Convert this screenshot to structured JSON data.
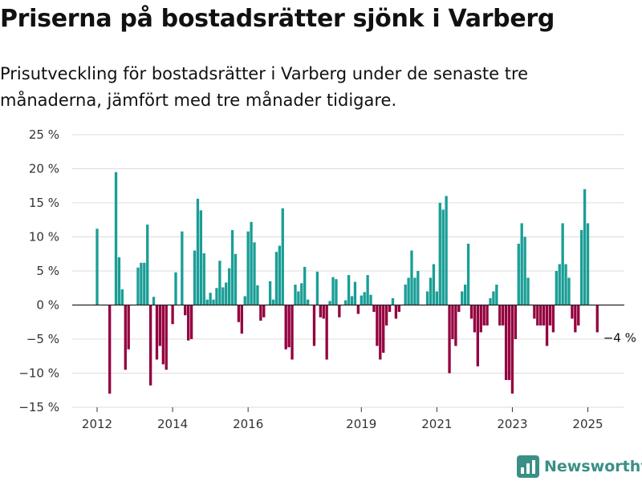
{
  "header": {
    "title": "Priserna på bostadsrätter sjönk i Varberg",
    "subtitle": "Prisutveckling för bostadsrätter i Varberg under de senaste tre månaderna, jämfört med tre månader tidigare."
  },
  "branding": {
    "name": "Newsworthy",
    "icon": "chart-logo-icon"
  },
  "chart_data": {
    "type": "bar",
    "title": "Priserna på bostadsrätter sjönk i Varberg",
    "subtitle": "Prisutveckling för bostadsrätter i Varberg under de senaste tre månaderna, jämfört med tre månader tidigare.",
    "xlabel": "",
    "ylabel": "",
    "ylim": [
      -15,
      25
    ],
    "y_ticks": [
      -15,
      -10,
      -5,
      0,
      5,
      10,
      15,
      20,
      25
    ],
    "y_tick_labels": [
      "−15 %",
      "−10 %",
      "−5 %",
      "0 %",
      "5 %",
      "10 %",
      "15 %",
      "20 %",
      "25 %"
    ],
    "x_tick_labels": [
      "2012",
      "2014",
      "2016",
      "2019",
      "2021",
      "2023",
      "2025"
    ],
    "x_tick_dates": [
      "2012-01",
      "2014-01",
      "2016-01",
      "2019-01",
      "2021-01",
      "2023-01",
      "2025-01"
    ],
    "grid": true,
    "legend": "none",
    "colors": {
      "positive": "#1a9e96",
      "negative": "#94003f"
    },
    "annotation": {
      "text": "−4 %",
      "date": "2025-04",
      "value": -4
    },
    "x": [
      "2012-01",
      "2012-05",
      "2012-07",
      "2012-08",
      "2012-09",
      "2012-10",
      "2012-11",
      "2013-02",
      "2013-03",
      "2013-04",
      "2013-05",
      "2013-06",
      "2013-07",
      "2013-08",
      "2013-09",
      "2013-10",
      "2013-11",
      "2013-12",
      "2014-01",
      "2014-02",
      "2014-03",
      "2014-04",
      "2014-05",
      "2014-06",
      "2014-07",
      "2014-08",
      "2014-09",
      "2014-10",
      "2014-11",
      "2014-12",
      "2015-01",
      "2015-02",
      "2015-03",
      "2015-04",
      "2015-05",
      "2015-06",
      "2015-07",
      "2015-08",
      "2015-09",
      "2015-10",
      "2015-11",
      "2015-12",
      "2016-01",
      "2016-02",
      "2016-03",
      "2016-04",
      "2016-05",
      "2016-06",
      "2016-07",
      "2016-08",
      "2016-09",
      "2016-10",
      "2016-11",
      "2016-12",
      "2017-01",
      "2017-02",
      "2017-03",
      "2017-04",
      "2017-05",
      "2017-06",
      "2017-07",
      "2017-08",
      "2017-09",
      "2017-10",
      "2017-11",
      "2017-12",
      "2018-01",
      "2018-02",
      "2018-03",
      "2018-04",
      "2018-05",
      "2018-06",
      "2018-07",
      "2018-08",
      "2018-09",
      "2018-10",
      "2018-11",
      "2018-12",
      "2019-01",
      "2019-02",
      "2019-03",
      "2019-04",
      "2019-05",
      "2019-06",
      "2019-07",
      "2019-08",
      "2019-09",
      "2019-10",
      "2019-11",
      "2019-12",
      "2020-01",
      "2020-02",
      "2020-03",
      "2020-04",
      "2020-05",
      "2020-06",
      "2020-07",
      "2020-08",
      "2020-09",
      "2020-10",
      "2020-11",
      "2020-12",
      "2021-01",
      "2021-02",
      "2021-03",
      "2021-04",
      "2021-05",
      "2021-06",
      "2021-07",
      "2021-08",
      "2021-09",
      "2021-10",
      "2021-11",
      "2021-12",
      "2022-01",
      "2022-02",
      "2022-03",
      "2022-04",
      "2022-05",
      "2022-06",
      "2022-07",
      "2022-08",
      "2022-09",
      "2022-10",
      "2022-11",
      "2022-12",
      "2023-01",
      "2023-02",
      "2023-03",
      "2023-04",
      "2023-05",
      "2023-06",
      "2023-07",
      "2023-08",
      "2023-09",
      "2023-10",
      "2023-11",
      "2023-12",
      "2024-01",
      "2024-02",
      "2024-03",
      "2024-04",
      "2024-05",
      "2024-06",
      "2024-07",
      "2024-08",
      "2024-09",
      "2024-10",
      "2024-11",
      "2024-12",
      "2025-01",
      "2025-02",
      "2025-03",
      "2025-04"
    ],
    "values": [
      11.2,
      -13,
      19.5,
      7,
      2.3,
      -9.5,
      -6.5,
      5.5,
      6.2,
      6.2,
      11.8,
      -11.8,
      1.2,
      -8,
      -6,
      -8.7,
      -9.5,
      0,
      -2.8,
      4.8,
      0,
      10.8,
      -1.5,
      -5.2,
      -5,
      8,
      15.6,
      13.9,
      7.6,
      0.8,
      1.8,
      0.8,
      2.5,
      6.5,
      2.6,
      3.3,
      5.4,
      11,
      7.5,
      -2.5,
      -4.2,
      1.3,
      10.8,
      12.2,
      9.2,
      2.9,
      -2.3,
      -1.8,
      0,
      3.5,
      0.8,
      7.8,
      8.7,
      14.2,
      -6.5,
      -6.2,
      -8,
      3,
      2,
      3.2,
      5.6,
      0.8,
      0,
      -6,
      4.9,
      -1.8,
      -2,
      -8,
      0.6,
      4.1,
      3.8,
      -1.8,
      0,
      0.7,
      4.4,
      1.3,
      3.4,
      -1.3,
      1.4,
      1.9,
      4.4,
      1.5,
      -1,
      -6,
      -8,
      -7,
      -3,
      -1,
      1,
      -2,
      -1,
      0,
      3,
      4,
      8,
      4,
      5,
      0,
      0,
      2,
      4,
      6,
      2,
      15,
      14,
      16,
      -10,
      -5,
      -6,
      -1,
      2,
      3,
      9,
      -2,
      -4,
      -9,
      -4,
      -3,
      -3,
      1,
      2,
      3,
      -3,
      -3,
      -11,
      -11,
      -13,
      -5,
      9,
      12,
      10,
      4,
      0,
      -2,
      -3,
      -3,
      -3,
      -6,
      -3,
      -4,
      5,
      6,
      12,
      6,
      4,
      -2,
      -4,
      -3,
      11,
      17,
      12,
      0,
      0,
      -4
    ]
  }
}
